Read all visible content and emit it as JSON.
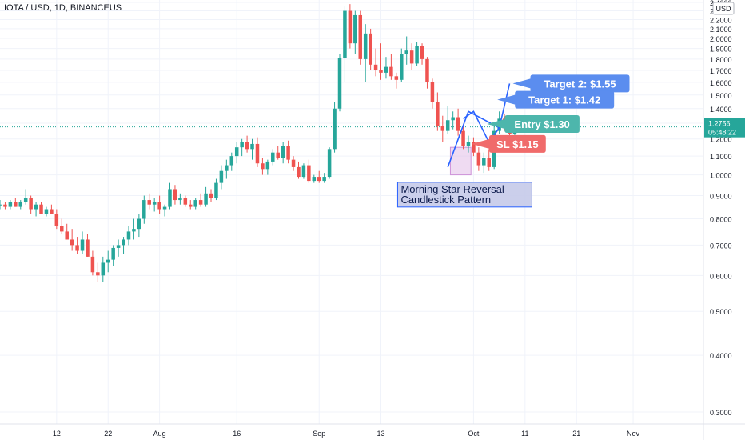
{
  "symbol_line": "IOTA / USD, 1D, BINANCEUS",
  "currency": "USD",
  "last_price": "1.2756",
  "countdown": "05:48:22",
  "colors": {
    "up": "#26a69a",
    "down": "#ef5350",
    "grid": "#f0f3fa",
    "text": "#131722",
    "entry": "#4db6ac",
    "sl": "#f06b6b",
    "target": "#5b8def",
    "trend": "#2962ff",
    "pattern_box": "#e1bee7"
  },
  "chart_data": {
    "type": "candlestick",
    "price_axis": {
      "scale": "log",
      "min": 0.2777,
      "max": 2.43,
      "ticks": [
        "0.3000",
        "0.4000",
        "0.5000",
        "0.6000",
        "0.7000",
        "0.8000",
        "0.9000",
        "1.0000",
        "1.1000",
        "1.2000",
        "1.3000",
        "1.4000",
        "1.5000",
        "1.6000",
        "1.7000",
        "1.8000",
        "1.9000",
        "2.0000",
        "2.1000",
        "2.2000",
        "2.3000",
        "2.4000"
      ]
    },
    "time_axis": {
      "first_date": "2021-07-01",
      "last_date": "2021-11-10",
      "labels": [
        {
          "text": "12",
          "date": "2021-07-12"
        },
        {
          "text": "22",
          "date": "2021-07-22"
        },
        {
          "text": "Aug",
          "date": "2021-08-01"
        },
        {
          "text": "16",
          "date": "2021-08-16"
        },
        {
          "text": "Sep",
          "date": "2021-09-01"
        },
        {
          "text": "13",
          "date": "2021-09-13"
        },
        {
          "text": "Oct",
          "date": "2021-10-01"
        },
        {
          "text": "11",
          "date": "2021-10-11"
        },
        {
          "text": "21",
          "date": "2021-10-21"
        },
        {
          "text": "Nov",
          "date": "2021-11-01"
        }
      ]
    },
    "start_date": "2021-07-01",
    "ohlc": [
      [
        0.86,
        0.88,
        0.84,
        0.86
      ],
      [
        0.86,
        0.87,
        0.84,
        0.85
      ],
      [
        0.85,
        0.88,
        0.84,
        0.87
      ],
      [
        0.87,
        0.89,
        0.85,
        0.85
      ],
      [
        0.85,
        0.88,
        0.84,
        0.87
      ],
      [
        0.87,
        0.93,
        0.86,
        0.89
      ],
      [
        0.89,
        0.9,
        0.82,
        0.84
      ],
      [
        0.84,
        0.87,
        0.81,
        0.86
      ],
      [
        0.86,
        0.87,
        0.82,
        0.82
      ],
      [
        0.82,
        0.85,
        0.81,
        0.84
      ],
      [
        0.84,
        0.86,
        0.82,
        0.82
      ],
      [
        0.82,
        0.84,
        0.76,
        0.77
      ],
      [
        0.77,
        0.8,
        0.74,
        0.75
      ],
      [
        0.75,
        0.78,
        0.72,
        0.72
      ],
      [
        0.72,
        0.76,
        0.68,
        0.7
      ],
      [
        0.7,
        0.73,
        0.67,
        0.68
      ],
      [
        0.68,
        0.75,
        0.67,
        0.72
      ],
      [
        0.72,
        0.74,
        0.66,
        0.66
      ],
      [
        0.66,
        0.68,
        0.6,
        0.61
      ],
      [
        0.61,
        0.64,
        0.58,
        0.6
      ],
      [
        0.6,
        0.66,
        0.58,
        0.64
      ],
      [
        0.64,
        0.68,
        0.61,
        0.65
      ],
      [
        0.65,
        0.7,
        0.63,
        0.69
      ],
      [
        0.69,
        0.72,
        0.66,
        0.7
      ],
      [
        0.7,
        0.73,
        0.67,
        0.72
      ],
      [
        0.72,
        0.77,
        0.7,
        0.75
      ],
      [
        0.75,
        0.8,
        0.72,
        0.76
      ],
      [
        0.76,
        0.82,
        0.73,
        0.8
      ],
      [
        0.8,
        0.9,
        0.78,
        0.88
      ],
      [
        0.88,
        0.91,
        0.84,
        0.86
      ],
      [
        0.86,
        0.89,
        0.83,
        0.87
      ],
      [
        0.87,
        0.9,
        0.82,
        0.84
      ],
      [
        0.84,
        0.86,
        0.81,
        0.85
      ],
      [
        0.85,
        0.96,
        0.84,
        0.93
      ],
      [
        0.93,
        0.95,
        0.86,
        0.88
      ],
      [
        0.88,
        0.91,
        0.86,
        0.89
      ],
      [
        0.89,
        0.9,
        0.85,
        0.86
      ],
      [
        0.86,
        0.88,
        0.84,
        0.85
      ],
      [
        0.85,
        0.89,
        0.84,
        0.88
      ],
      [
        0.88,
        0.91,
        0.85,
        0.86
      ],
      [
        0.86,
        0.94,
        0.85,
        0.91
      ],
      [
        0.91,
        0.93,
        0.87,
        0.89
      ],
      [
        0.89,
        0.98,
        0.88,
        0.96
      ],
      [
        0.96,
        1.05,
        0.93,
        1.02
      ],
      [
        1.02,
        1.08,
        0.98,
        1.05
      ],
      [
        1.05,
        1.12,
        1.02,
        1.1
      ],
      [
        1.1,
        1.18,
        1.06,
        1.15
      ],
      [
        1.15,
        1.2,
        1.1,
        1.18
      ],
      [
        1.18,
        1.22,
        1.12,
        1.14
      ],
      [
        1.14,
        1.2,
        1.08,
        1.17
      ],
      [
        1.17,
        1.21,
        1.04,
        1.06
      ],
      [
        1.06,
        1.09,
        1.0,
        1.03
      ],
      [
        1.03,
        1.08,
        1.0,
        1.07
      ],
      [
        1.07,
        1.14,
        1.05,
        1.12
      ],
      [
        1.12,
        1.16,
        1.08,
        1.09
      ],
      [
        1.09,
        1.18,
        1.06,
        1.16
      ],
      [
        1.16,
        1.19,
        1.06,
        1.08
      ],
      [
        1.08,
        1.1,
        1.02,
        1.04
      ],
      [
        1.04,
        1.07,
        0.98,
        0.99
      ],
      [
        0.99,
        1.06,
        0.98,
        1.05
      ],
      [
        1.05,
        1.08,
        0.96,
        0.97
      ],
      [
        0.97,
        1.0,
        0.96,
        0.99
      ],
      [
        0.99,
        1.02,
        0.96,
        0.97
      ],
      [
        0.97,
        1.01,
        0.96,
        0.99
      ],
      [
        0.99,
        1.15,
        0.98,
        1.14
      ],
      [
        1.14,
        1.45,
        1.12,
        1.4
      ],
      [
        1.4,
        1.85,
        1.38,
        1.81
      ],
      [
        1.81,
        2.35,
        1.6,
        2.3
      ],
      [
        2.3,
        2.38,
        1.9,
        1.95
      ],
      [
        1.95,
        2.3,
        1.85,
        2.25
      ],
      [
        2.25,
        2.3,
        1.75,
        1.8
      ],
      [
        1.8,
        2.15,
        1.6,
        2.05
      ],
      [
        2.05,
        2.1,
        1.7,
        1.75
      ],
      [
        1.75,
        1.9,
        1.65,
        1.7
      ],
      [
        1.7,
        1.95,
        1.62,
        1.68
      ],
      [
        1.68,
        1.82,
        1.63,
        1.73
      ],
      [
        1.73,
        1.85,
        1.62,
        1.65
      ],
      [
        1.65,
        1.68,
        1.55,
        1.62
      ],
      [
        1.62,
        1.9,
        1.6,
        1.85
      ],
      [
        1.85,
        2.02,
        1.75,
        1.88
      ],
      [
        1.88,
        1.95,
        1.7,
        1.76
      ],
      [
        1.76,
        1.96,
        1.74,
        1.92
      ],
      [
        1.92,
        1.95,
        1.75,
        1.8
      ],
      [
        1.8,
        1.82,
        1.55,
        1.6
      ],
      [
        1.6,
        1.63,
        1.4,
        1.45
      ],
      [
        1.45,
        1.52,
        1.25,
        1.28
      ],
      [
        1.28,
        1.35,
        1.18,
        1.25
      ],
      [
        1.25,
        1.42,
        1.23,
        1.32
      ],
      [
        1.32,
        1.38,
        1.26,
        1.34
      ],
      [
        1.34,
        1.4,
        1.22,
        1.25
      ],
      [
        1.25,
        1.28,
        1.14,
        1.16
      ],
      [
        1.16,
        1.22,
        1.12,
        1.18
      ],
      [
        1.18,
        1.21,
        1.1,
        1.12
      ],
      [
        1.12,
        1.15,
        1.02,
        1.05
      ],
      [
        1.05,
        1.12,
        1.01,
        1.09
      ],
      [
        1.09,
        1.14,
        1.02,
        1.04
      ],
      [
        1.04,
        1.3,
        1.03,
        1.25
      ],
      [
        1.25,
        1.38,
        1.23,
        1.33
      ],
      [
        1.33,
        1.36,
        1.25,
        1.27
      ],
      [
        1.27,
        1.32,
        1.22,
        1.23
      ],
      [
        1.23,
        1.29,
        1.21,
        1.28
      ]
    ],
    "pattern_box": {
      "from": "2021-09-27",
      "to": "2021-09-30",
      "low": 1.0,
      "high": 1.15
    },
    "pattern_label": [
      "Morning Star Reversal",
      "Candlestick Pattern"
    ],
    "trend_path": [
      [
        "2021-09-26",
        1.04
      ],
      [
        "2021-09-30",
        1.38
      ],
      [
        "2021-10-06",
        1.27
      ],
      [
        "2021-10-08",
        1.59
      ]
    ],
    "flag_path": [
      [
        "2021-09-29",
        1.33
      ],
      [
        "2021-10-01",
        1.38
      ],
      [
        "2021-10-04",
        1.18
      ],
      [
        "2021-10-06",
        1.27
      ]
    ],
    "callouts": [
      {
        "text": "Target 2: $1.55",
        "price": 1.59,
        "tip_date": "2021-10-08",
        "color": "target"
      },
      {
        "text": "Target 1: $1.42",
        "price": 1.465,
        "tip_date": "2021-10-05",
        "color": "target"
      },
      {
        "text": "Entry $1.30",
        "price": 1.295,
        "tip_date": "2021-10-03",
        "color": "entry"
      },
      {
        "text": "SL $1.15",
        "price": 1.17,
        "tip_date": "2021-09-30",
        "color": "sl"
      }
    ]
  }
}
